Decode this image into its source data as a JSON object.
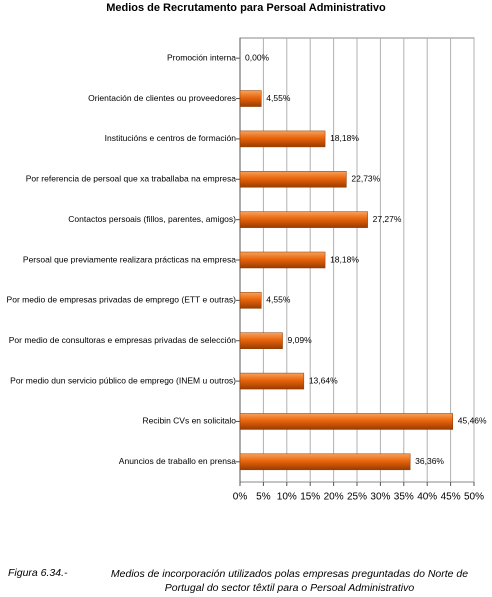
{
  "chart_data": {
    "type": "hbar",
    "title": "Medios de Recrutamento para Persoal Administrativo",
    "categories": [
      "Promoción interna",
      "Orientación de clientes ou proveedores",
      "Institucións e centros de formación",
      "Por referencia de persoal que xa traballaba na empresa",
      "Contactos persoais (fillos, parentes, amigos)",
      "Persoal que previamente realizara prácticas na empresa",
      "Por medio de empresas privadas de emprego (ETT e outras)",
      "Por medio  de consultoras e empresas privadas de selección",
      "Por medio dun servicio público de emprego (INEM u outros)",
      "Recibin CVs en solicitalo",
      "Anuncios de traballo en prensa"
    ],
    "values": [
      0,
      4.55,
      18.18,
      22.73,
      27.27,
      18.18,
      4.55,
      9.09,
      13.64,
      45.46,
      36.36
    ],
    "value_labels": [
      "0,00%",
      "4,55%",
      "18,18%",
      "22,73%",
      "27,27%",
      "18,18%",
      "4,55%",
      "9,09%",
      "13,64%",
      "45,46%",
      "36,36%"
    ],
    "color": "#e8640c",
    "xlim": [
      0,
      50
    ],
    "xticks": [
      {
        "value": 0,
        "label": "0%"
      },
      {
        "value": 5,
        "label": "5%"
      },
      {
        "value": 10,
        "label": "10%"
      },
      {
        "value": 15,
        "label": "15%"
      },
      {
        "value": 20,
        "label": "20%"
      },
      {
        "value": 25,
        "label": "25%"
      },
      {
        "value": 30,
        "label": "30%"
      },
      {
        "value": 35,
        "label": "35%"
      },
      {
        "value": 40,
        "label": "40%"
      },
      {
        "value": 45,
        "label": "45%"
      },
      {
        "value": 50,
        "label": "50%"
      }
    ],
    "grid": true,
    "figure_label": "Figura 6.34.-",
    "caption": "Medios de incorporación utilizados polas empresas preguntadas do Norte de Portugal do sector têxtil para o Persoal Administrativo"
  }
}
